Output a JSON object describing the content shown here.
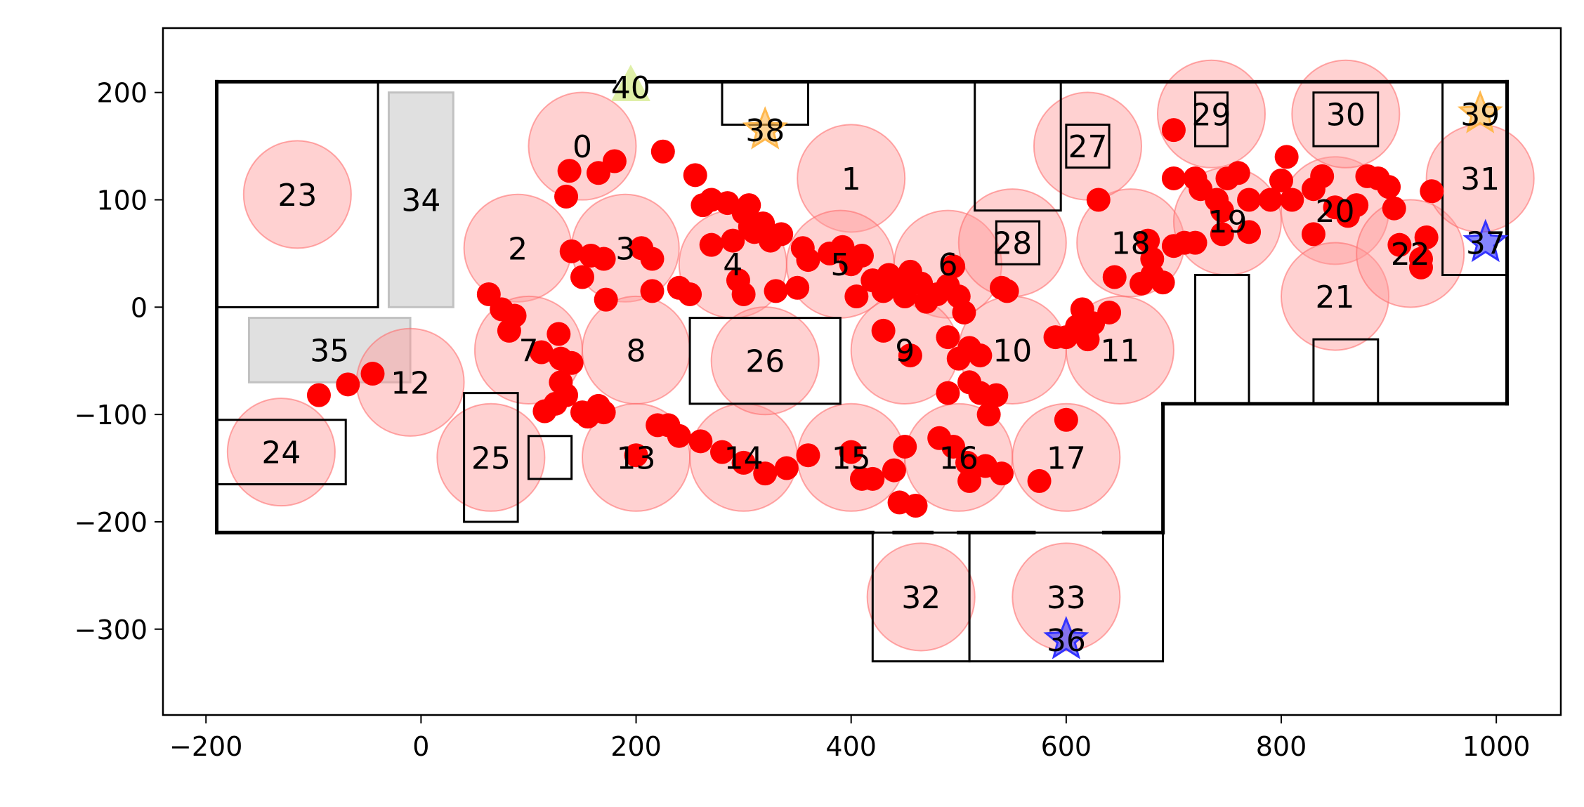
{
  "chart_data": {
    "type": "scatter",
    "xlim": [
      -240,
      1060
    ],
    "ylim": [
      -380,
      260
    ],
    "xticks": [
      -200,
      0,
      200,
      400,
      600,
      800,
      1000
    ],
    "yticks": [
      -300,
      -200,
      -100,
      0,
      100,
      200
    ],
    "xtick_labels": [
      "−200",
      "0",
      "200",
      "400",
      "600",
      "800",
      "1000"
    ],
    "ytick_labels": [
      "−300",
      "−200",
      "−100",
      "0",
      "100",
      "200"
    ],
    "grid": false,
    "colors": {
      "zone_fill": "#ff9999",
      "zone_edge": "#ff6666",
      "trajectory": "#ff0000",
      "wall": "#000000",
      "obstacle_fill": "#dddddd",
      "obstacle_edge": "#bbbbbb",
      "start_star": "#ffb84d",
      "goal_star": "#3333ff",
      "triangle": "#d9ec99"
    },
    "zones": [
      {
        "label": "0",
        "x": 150,
        "y": 150
      },
      {
        "label": "1",
        "x": 400,
        "y": 120
      },
      {
        "label": "2",
        "x": 90,
        "y": 55
      },
      {
        "label": "3",
        "x": 190,
        "y": 55
      },
      {
        "label": "4",
        "x": 290,
        "y": 40
      },
      {
        "label": "5",
        "x": 390,
        "y": 40
      },
      {
        "label": "6",
        "x": 490,
        "y": 40
      },
      {
        "label": "7",
        "x": 100,
        "y": -40
      },
      {
        "label": "8",
        "x": 200,
        "y": -40
      },
      {
        "label": "9",
        "x": 450,
        "y": -40
      },
      {
        "label": "10",
        "x": 550,
        "y": -40
      },
      {
        "label": "11",
        "x": 650,
        "y": -40
      },
      {
        "label": "12",
        "x": -10,
        "y": -70
      },
      {
        "label": "13",
        "x": 200,
        "y": -140
      },
      {
        "label": "14",
        "x": 300,
        "y": -140
      },
      {
        "label": "15",
        "x": 400,
        "y": -140
      },
      {
        "label": "16",
        "x": 500,
        "y": -140
      },
      {
        "label": "17",
        "x": 600,
        "y": -140
      },
      {
        "label": "18",
        "x": 660,
        "y": 60
      },
      {
        "label": "19",
        "x": 750,
        "y": 80
      },
      {
        "label": "20",
        "x": 850,
        "y": 90
      },
      {
        "label": "21",
        "x": 850,
        "y": 10
      },
      {
        "label": "22",
        "x": 920,
        "y": 50
      },
      {
        "label": "23",
        "x": -115,
        "y": 105
      },
      {
        "label": "24",
        "x": -130,
        "y": -135
      },
      {
        "label": "25",
        "x": 65,
        "y": -140
      },
      {
        "label": "26",
        "x": 320,
        "y": -50
      },
      {
        "label": "27",
        "x": 620,
        "y": 150
      },
      {
        "label": "28",
        "x": 550,
        "y": 60
      },
      {
        "label": "29",
        "x": 735,
        "y": 180
      },
      {
        "label": "30",
        "x": 860,
        "y": 180
      },
      {
        "label": "31",
        "x": 985,
        "y": 120
      },
      {
        "label": "32",
        "x": 465,
        "y": -270
      },
      {
        "label": "33",
        "x": 600,
        "y": -270
      }
    ],
    "obstacles": [
      {
        "label": "34",
        "x0": -30,
        "y0": 0,
        "x1": 30,
        "y1": 200
      },
      {
        "label": "35",
        "x0": -160,
        "y0": -70,
        "x1": -10,
        "y1": -10
      }
    ],
    "markers": [
      {
        "label": "36",
        "type": "goal-star",
        "x": 600,
        "y": -310
      },
      {
        "label": "37",
        "type": "goal-star",
        "x": 990,
        "y": 60
      },
      {
        "label": "38",
        "type": "start-star",
        "x": 320,
        "y": 165
      },
      {
        "label": "39",
        "type": "start-star",
        "x": 985,
        "y": 180
      },
      {
        "label": "40",
        "type": "triangle",
        "x": 195,
        "y": 205
      }
    ],
    "trajectory": [
      [
        -95,
        -82
      ],
      [
        -68,
        -72
      ],
      [
        -45,
        -62
      ],
      [
        63,
        12
      ],
      [
        75,
        -2
      ],
      [
        87,
        -8
      ],
      [
        82,
        -22
      ],
      [
        112,
        -42
      ],
      [
        128,
        -25
      ],
      [
        130,
        -48
      ],
      [
        140,
        -52
      ],
      [
        130,
        -70
      ],
      [
        135,
        -82
      ],
      [
        150,
        -98
      ],
      [
        165,
        -92
      ],
      [
        170,
        -98
      ],
      [
        155,
        -102
      ],
      [
        125,
        -90
      ],
      [
        115,
        -97
      ],
      [
        138,
        127
      ],
      [
        135,
        103
      ],
      [
        165,
        125
      ],
      [
        180,
        136
      ],
      [
        158,
        48
      ],
      [
        140,
        52
      ],
      [
        150,
        28
      ],
      [
        170,
        45
      ],
      [
        172,
        7
      ],
      [
        205,
        55
      ],
      [
        215,
        45
      ],
      [
        215,
        15
      ],
      [
        240,
        18
      ],
      [
        250,
        12
      ],
      [
        225,
        145
      ],
      [
        255,
        123
      ],
      [
        262,
        95
      ],
      [
        270,
        100
      ],
      [
        285,
        97
      ],
      [
        300,
        88
      ],
      [
        305,
        95
      ],
      [
        306,
        75
      ],
      [
        318,
        78
      ],
      [
        270,
        58
      ],
      [
        290,
        62
      ],
      [
        310,
        70
      ],
      [
        325,
        62
      ],
      [
        330,
        15
      ],
      [
        295,
        25
      ],
      [
        300,
        12
      ],
      [
        335,
        68
      ],
      [
        355,
        55
      ],
      [
        360,
        44
      ],
      [
        350,
        18
      ],
      [
        380,
        50
      ],
      [
        392,
        56
      ],
      [
        400,
        40
      ],
      [
        405,
        10
      ],
      [
        410,
        48
      ],
      [
        420,
        25
      ],
      [
        430,
        15
      ],
      [
        435,
        30
      ],
      [
        445,
        25
      ],
      [
        450,
        10
      ],
      [
        455,
        33
      ],
      [
        465,
        22
      ],
      [
        470,
        5
      ],
      [
        480,
        12
      ],
      [
        490,
        20
      ],
      [
        500,
        10
      ],
      [
        495,
        38
      ],
      [
        505,
        -5
      ],
      [
        430,
        -22
      ],
      [
        455,
        -45
      ],
      [
        490,
        -28
      ],
      [
        500,
        -48
      ],
      [
        510,
        -38
      ],
      [
        520,
        -45
      ],
      [
        490,
        -80
      ],
      [
        510,
        -70
      ],
      [
        520,
        -80
      ],
      [
        535,
        -82
      ],
      [
        528,
        -100
      ],
      [
        540,
        18
      ],
      [
        545,
        15
      ],
      [
        590,
        -28
      ],
      [
        600,
        -28
      ],
      [
        610,
        -18
      ],
      [
        625,
        -15
      ],
      [
        640,
        -5
      ],
      [
        620,
        -30
      ],
      [
        615,
        -2
      ],
      [
        645,
        28
      ],
      [
        670,
        22
      ],
      [
        680,
        30
      ],
      [
        690,
        23
      ],
      [
        680,
        45
      ],
      [
        676,
        62
      ],
      [
        630,
        100
      ],
      [
        700,
        57
      ],
      [
        710,
        60
      ],
      [
        720,
        60
      ],
      [
        700,
        120
      ],
      [
        720,
        120
      ],
      [
        725,
        110
      ],
      [
        740,
        100
      ],
      [
        750,
        120
      ],
      [
        760,
        125
      ],
      [
        770,
        100
      ],
      [
        770,
        70
      ],
      [
        745,
        68
      ],
      [
        745,
        90
      ],
      [
        790,
        100
      ],
      [
        800,
        118
      ],
      [
        805,
        140
      ],
      [
        810,
        100
      ],
      [
        830,
        110
      ],
      [
        838,
        122
      ],
      [
        830,
        68
      ],
      [
        850,
        93
      ],
      [
        862,
        85
      ],
      [
        870,
        95
      ],
      [
        880,
        122
      ],
      [
        890,
        120
      ],
      [
        900,
        112
      ],
      [
        905,
        92
      ],
      [
        910,
        58
      ],
      [
        930,
        45
      ],
      [
        935,
        65
      ],
      [
        930,
        37
      ],
      [
        940,
        108
      ],
      [
        700,
        165
      ],
      [
        600,
        -105
      ],
      [
        575,
        -162
      ],
      [
        440,
        -152
      ],
      [
        420,
        -160
      ],
      [
        360,
        -138
      ],
      [
        340,
        -150
      ],
      [
        320,
        -155
      ],
      [
        300,
        -145
      ],
      [
        280,
        -135
      ],
      [
        260,
        -125
      ],
      [
        240,
        -120
      ],
      [
        230,
        -110
      ],
      [
        220,
        -110
      ],
      [
        200,
        -138
      ],
      [
        460,
        -185
      ],
      [
        445,
        -182
      ],
      [
        450,
        -130
      ],
      [
        482,
        -122
      ],
      [
        495,
        -130
      ],
      [
        508,
        -145
      ],
      [
        510,
        -162
      ],
      [
        525,
        -148
      ],
      [
        540,
        -155
      ],
      [
        410,
        -160
      ],
      [
        400,
        -135
      ]
    ],
    "walls": [
      [
        [
          -190,
          210
        ],
        [
          180,
          210
        ]
      ],
      [
        [
          210,
          210
        ],
        [
          1010,
          210
        ]
      ],
      [
        [
          -190,
          210
        ],
        [
          -190,
          -210
        ]
      ],
      [
        [
          -190,
          -210
        ],
        [
          420,
          -210
        ]
      ],
      [
        [
          440,
          -210
        ],
        [
          475,
          -210
        ]
      ],
      [
        [
          500,
          -210
        ],
        [
          570,
          -210
        ]
      ],
      [
        [
          635,
          -210
        ],
        [
          690,
          -210
        ]
      ],
      [
        [
          1010,
          210
        ],
        [
          1010,
          -90
        ]
      ],
      [
        [
          1010,
          -90
        ],
        [
          690,
          -90
        ]
      ],
      [
        [
          690,
          -90
        ],
        [
          690,
          -210
        ]
      ]
    ],
    "rooms": [
      [
        [
          -190,
          210
        ],
        [
          -40,
          210
        ],
        [
          -40,
          0
        ],
        [
          -190,
          0
        ]
      ],
      [
        [
          -190,
          -105
        ],
        [
          -70,
          -105
        ],
        [
          -70,
          -165
        ],
        [
          -190,
          -165
        ]
      ],
      [
        [
          40,
          -80
        ],
        [
          90,
          -80
        ],
        [
          90,
          -200
        ],
        [
          40,
          -200
        ]
      ],
      [
        [
          100,
          -120
        ],
        [
          140,
          -120
        ],
        [
          140,
          -160
        ],
        [
          100,
          -160
        ]
      ],
      [
        [
          250,
          -10
        ],
        [
          390,
          -10
        ],
        [
          390,
          -90
        ],
        [
          250,
          -90
        ]
      ],
      [
        [
          280,
          210
        ],
        [
          360,
          210
        ],
        [
          360,
          170
        ],
        [
          280,
          170
        ]
      ],
      [
        [
          515,
          210
        ],
        [
          595,
          210
        ],
        [
          595,
          90
        ],
        [
          515,
          90
        ]
      ],
      [
        [
          600,
          170
        ],
        [
          640,
          170
        ],
        [
          640,
          130
        ],
        [
          600,
          130
        ]
      ],
      [
        [
          535,
          80
        ],
        [
          575,
          80
        ],
        [
          575,
          40
        ],
        [
          535,
          40
        ]
      ],
      [
        [
          720,
          200
        ],
        [
          750,
          200
        ],
        [
          750,
          150
        ],
        [
          720,
          150
        ]
      ],
      [
        [
          830,
          200
        ],
        [
          890,
          200
        ],
        [
          890,
          150
        ],
        [
          830,
          150
        ]
      ],
      [
        [
          950,
          210
        ],
        [
          1010,
          210
        ],
        [
          1010,
          30
        ],
        [
          950,
          30
        ]
      ],
      [
        [
          720,
          30
        ],
        [
          770,
          30
        ],
        [
          770,
          -90
        ],
        [
          720,
          -90
        ]
      ],
      [
        [
          830,
          -30
        ],
        [
          890,
          -30
        ],
        [
          890,
          -90
        ],
        [
          830,
          -90
        ]
      ],
      [
        [
          420,
          -210
        ],
        [
          510,
          -210
        ],
        [
          510,
          -330
        ],
        [
          420,
          -330
        ]
      ],
      [
        [
          510,
          -210
        ],
        [
          690,
          -210
        ],
        [
          690,
          -330
        ],
        [
          510,
          -330
        ]
      ]
    ]
  }
}
